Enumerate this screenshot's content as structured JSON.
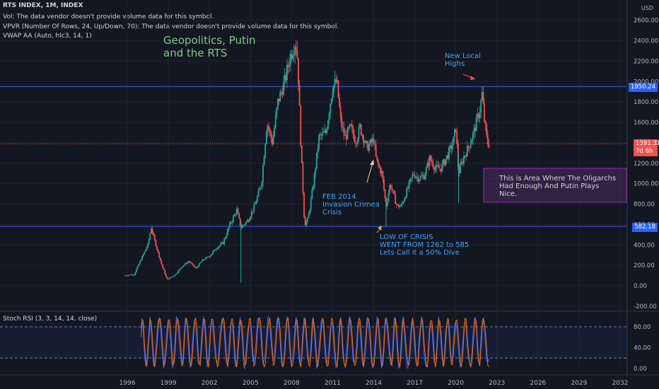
{
  "header": {
    "symbol_line": "RTS INDEX, 1M, INDEX",
    "vol_line": "Vol: The data vendor doesn't provide volume data for this symbol.",
    "vpvr_line": "VPVR (Number Of Rows, 24, Up/Down, 70): The data vendor doesn't provide volume data for this symbol.",
    "vwap_line": "VWAP AA (Auto, hlc3, 14, 1)"
  },
  "currency": "USD",
  "annotations": {
    "title": "Geopolitics, Putin\nand the RTS",
    "new_highs": "New Local\nHighs",
    "feb2014": "FEB 2014\nInvasion Crimea\nCrisis",
    "low_crisis": "LOW OF CRISIS\nWENT FROM 1262 to 585\nLets Call it a 50% Dive",
    "box_text": "This is Area Where The Oligarchs\nHad Enough And Putin  Plays\nNice."
  },
  "price_tags": {
    "upper_line": "1950.24",
    "current_price": "1391.31",
    "countdown": "7d 6h",
    "lower_line": "582.18"
  },
  "oscillator": {
    "label": "Stoch RSI (3, 3, 14, 14, close)"
  },
  "colors": {
    "background": "#131722",
    "up": "#26a69a",
    "down": "#ef5350",
    "hline": "#2962ff",
    "k_line": "#2962ff",
    "d_line": "#ff6d00",
    "title_text": "#81c784",
    "note_text": "#42a5f5"
  },
  "chart_data": {
    "type": "candlestick",
    "x_ticks": [
      "1996",
      "1999",
      "2002",
      "2005",
      "2008",
      "2011",
      "2014",
      "2017",
      "2020",
      "2023",
      "2026",
      "2029",
      "2032"
    ],
    "y_ticks": [
      -200,
      0,
      200,
      400,
      600,
      800,
      1000,
      1200,
      1400,
      1600,
      1800,
      2000,
      2200,
      2400,
      2600
    ],
    "ylim": [
      -200,
      2700
    ],
    "horizontal_lines": [
      1950.24,
      582.18
    ],
    "current_price": 1391.31,
    "price_path": [
      [
        1995.75,
        100
      ],
      [
        1996.5,
        110
      ],
      [
        1997.0,
        260
      ],
      [
        1997.5,
        400
      ],
      [
        1997.75,
        570
      ],
      [
        1998.0,
        440
      ],
      [
        1998.5,
        210
      ],
      [
        1998.9,
        60
      ],
      [
        1999.5,
        110
      ],
      [
        2000.0,
        190
      ],
      [
        2000.5,
        240
      ],
      [
        2001.0,
        170
      ],
      [
        2001.5,
        250
      ],
      [
        2002.0,
        290
      ],
      [
        2002.5,
        370
      ],
      [
        2003.0,
        420
      ],
      [
        2003.5,
        600
      ],
      [
        2004.0,
        740
      ],
      [
        2004.3,
        570
      ],
      [
        2004.8,
        640
      ],
      [
        2005.3,
        780
      ],
      [
        2005.8,
        1000
      ],
      [
        2006.2,
        1600
      ],
      [
        2006.6,
        1400
      ],
      [
        2007.0,
        1800
      ],
      [
        2007.5,
        2000
      ],
      [
        2007.9,
        2250
      ],
      [
        2008.3,
        2400
      ],
      [
        2008.45,
        2200
      ],
      [
        2008.7,
        1300
      ],
      [
        2008.95,
        600
      ],
      [
        2009.2,
        650
      ],
      [
        2009.6,
        1000
      ],
      [
        2010.0,
        1450
      ],
      [
        2010.5,
        1500
      ],
      [
        2011.0,
        1950
      ],
      [
        2011.3,
        2000
      ],
      [
        2011.6,
        1600
      ],
      [
        2011.9,
        1450
      ],
      [
        2012.3,
        1550
      ],
      [
        2012.7,
        1420
      ],
      [
        2013.0,
        1550
      ],
      [
        2013.5,
        1350
      ],
      [
        2014.0,
        1430
      ],
      [
        2014.2,
        1220
      ],
      [
        2014.6,
        1100
      ],
      [
        2014.9,
        780
      ],
      [
        2015.2,
        1000
      ],
      [
        2015.7,
        780
      ],
      [
        2016.0,
        780
      ],
      [
        2016.4,
        920
      ],
      [
        2016.9,
        1100
      ],
      [
        2017.3,
        1050
      ],
      [
        2017.7,
        1080
      ],
      [
        2018.1,
        1250
      ],
      [
        2018.5,
        1150
      ],
      [
        2018.9,
        1150
      ],
      [
        2019.3,
        1250
      ],
      [
        2019.8,
        1400
      ],
      [
        2020.0,
        1550
      ],
      [
        2020.2,
        1100
      ],
      [
        2020.6,
        1270
      ],
      [
        2020.9,
        1350
      ],
      [
        2021.3,
        1500
      ],
      [
        2021.8,
        1750
      ],
      [
        2021.9,
        1900
      ],
      [
        2022.1,
        1600
      ],
      [
        2022.3,
        1400
      ],
      [
        2022.45,
        1391.31
      ]
    ],
    "wicks": [
      {
        "x": 2004.3,
        "low": 30,
        "high": 640
      },
      {
        "x": 2020.2,
        "low": 810,
        "high": 1300
      },
      {
        "x": 2014.9,
        "low": 585,
        "high": 850
      }
    ],
    "oscillator_ticks": [
      0,
      40,
      80
    ],
    "oscillator_levels": [
      20,
      80
    ]
  }
}
